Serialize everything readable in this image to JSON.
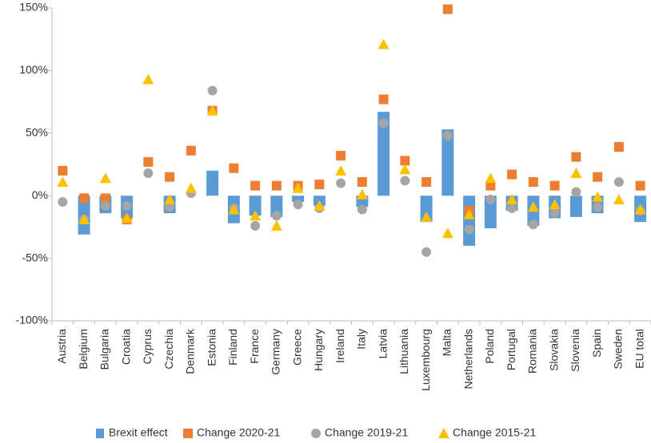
{
  "chart_data": {
    "type": "bar_markers",
    "categories": [
      "Austria",
      "Belgium",
      "Bulgaria",
      "Croatia",
      "Cyprus",
      "Czechia",
      "Denmark",
      "Estonia",
      "Finland",
      "France",
      "Germany",
      "Greece",
      "Hungary",
      "Ireland",
      "Italy",
      "Latvia",
      "Lithuania",
      "Luxembourg",
      "Malta",
      "Netherlands",
      "Poland",
      "Portugal",
      "Romania",
      "Slovakia",
      "Slovenia",
      "Spain",
      "Sweden",
      "EU total"
    ],
    "series": [
      {
        "name": "Brexit effect",
        "color": "#5b9bd5",
        "marker": "bar",
        "values": [
          null,
          -31,
          -14,
          -18,
          null,
          -14,
          null,
          20,
          -22,
          -16,
          -17,
          -5,
          -8,
          null,
          -9,
          67,
          null,
          -21,
          53,
          -40,
          -26,
          -12,
          -24,
          -18,
          -17,
          -14,
          null,
          -21
        ]
      },
      {
        "name": "Change 2020-21",
        "color": "#ed7d31",
        "marker": "square",
        "values": [
          20,
          -2,
          -2,
          -19,
          27,
          15,
          36,
          68,
          22,
          8,
          8,
          8,
          9,
          32,
          11,
          77,
          28,
          11,
          149,
          -12,
          8,
          17,
          11,
          8,
          31,
          15,
          39,
          8
        ]
      },
      {
        "name": "Change 2019-21",
        "color": "#a5a5a5",
        "marker": "circle",
        "values": [
          -5,
          -19,
          -8,
          -8,
          18,
          -9,
          2,
          84,
          -10,
          -24,
          -16,
          -7,
          -10,
          10,
          -11,
          58,
          12,
          -45,
          48,
          -27,
          -3,
          -10,
          -23,
          -14,
          3,
          -9,
          11,
          -12
        ]
      },
      {
        "name": "Change 2015-21",
        "color": "#ffc000",
        "marker": "triangle",
        "values": [
          11,
          -19,
          14,
          -18,
          93,
          -3,
          6,
          68,
          -11,
          -16,
          -24,
          6,
          -8,
          20,
          1,
          121,
          21,
          -17,
          -30,
          -15,
          14,
          -3,
          -9,
          -7,
          18,
          -1,
          -3,
          -11
        ]
      }
    ],
    "ylim": [
      -100,
      150
    ],
    "yticks": [
      {
        "value": -100,
        "label": "-100%"
      },
      {
        "value": -50,
        "label": "-50%"
      },
      {
        "value": 0,
        "label": "0%"
      },
      {
        "value": 50,
        "label": "50%"
      },
      {
        "value": 100,
        "label": "100%"
      },
      {
        "value": 150,
        "label": "150%"
      }
    ],
    "grid": false
  }
}
